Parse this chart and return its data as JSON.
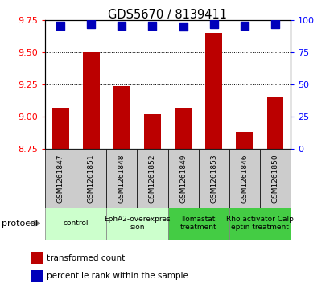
{
  "title": "GDS5670 / 8139411",
  "samples": [
    "GSM1261847",
    "GSM1261851",
    "GSM1261848",
    "GSM1261852",
    "GSM1261849",
    "GSM1261853",
    "GSM1261846",
    "GSM1261850"
  ],
  "transformed_counts": [
    9.07,
    9.5,
    9.24,
    9.02,
    9.07,
    9.65,
    8.88,
    9.15
  ],
  "percentile_ranks": [
    96,
    97,
    96,
    96,
    95,
    97,
    96,
    97
  ],
  "ylim_left": [
    8.75,
    9.75
  ],
  "ylim_right": [
    0,
    100
  ],
  "yticks_left": [
    8.75,
    9.0,
    9.25,
    9.5,
    9.75
  ],
  "yticks_right": [
    0,
    25,
    50,
    75,
    100
  ],
  "bar_color": "#bb0000",
  "dot_color": "#0000bb",
  "protocols": [
    {
      "label": "control",
      "samples": [
        0,
        1
      ],
      "color": "#ccffcc"
    },
    {
      "label": "EphA2-overexpres\nsion",
      "samples": [
        2,
        3
      ],
      "color": "#ccffcc"
    },
    {
      "label": "Ilomastat\ntreatment",
      "samples": [
        4,
        5
      ],
      "color": "#44cc44"
    },
    {
      "label": "Rho activator Calp\neptin treatment",
      "samples": [
        6,
        7
      ],
      "color": "#44cc44"
    }
  ],
  "protocol_label": "protocol",
  "bar_width": 0.55,
  "dot_size": 45,
  "gridline_color": "#000000",
  "background_color": "#ffffff",
  "sample_box_color": "#cccccc",
  "legend_bar_label": "transformed count",
  "legend_dot_label": "percentile rank within the sample",
  "x_label_fontsize": 6.5,
  "title_fontsize": 10.5,
  "tick_fontsize": 8
}
